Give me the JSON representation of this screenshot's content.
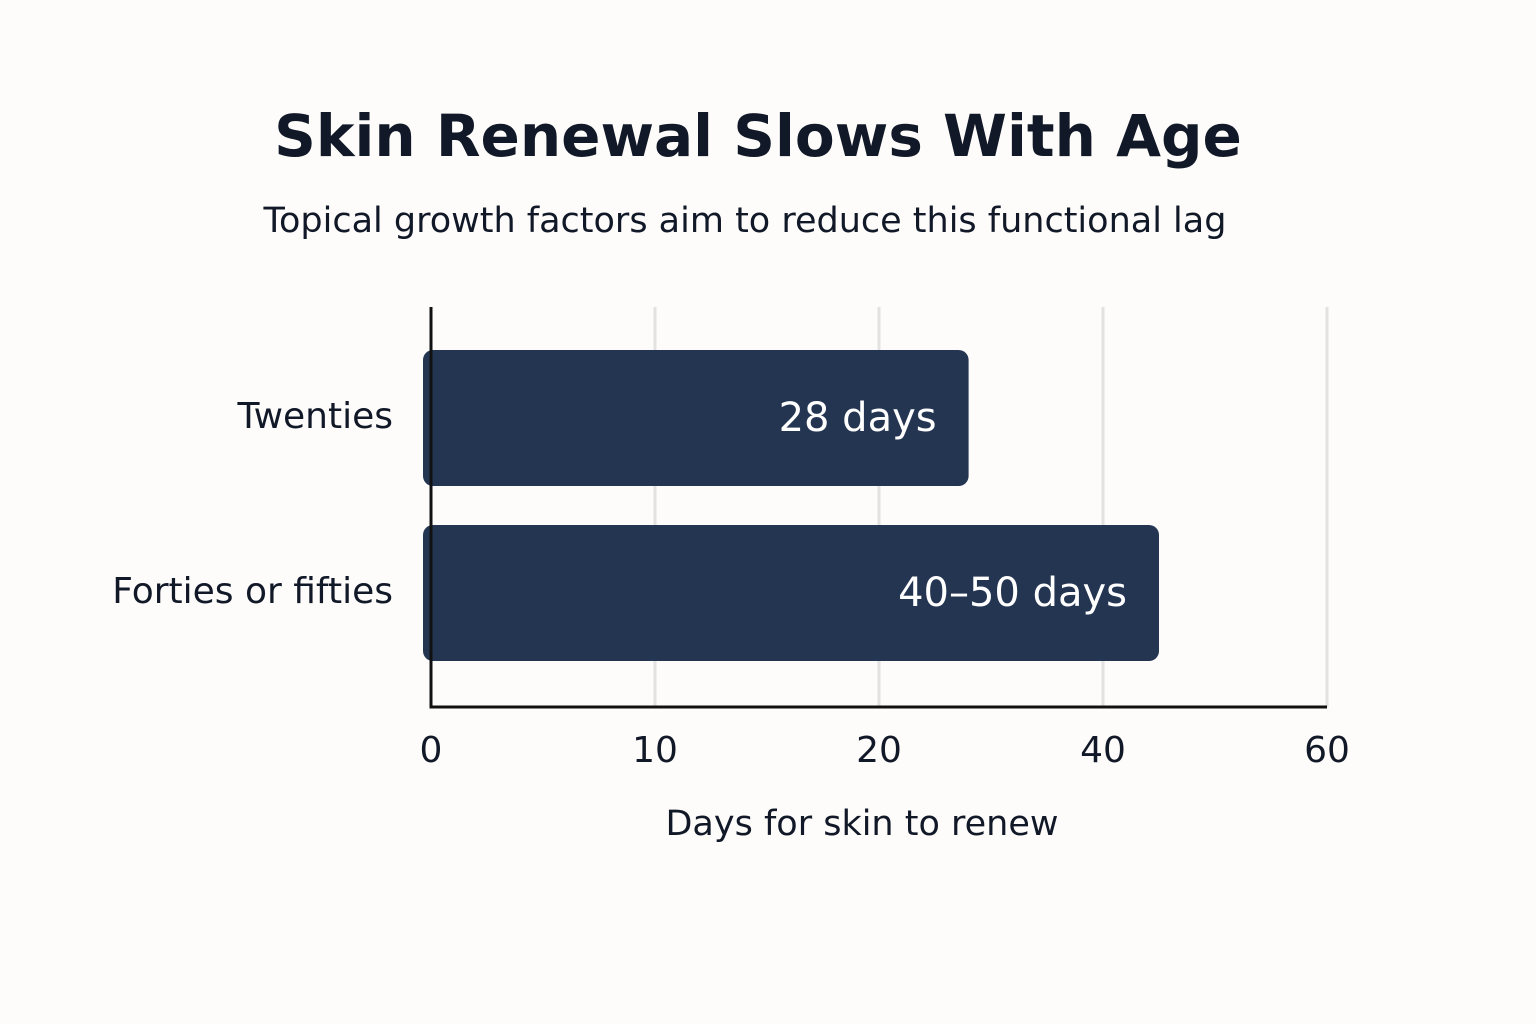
{
  "chart_data": {
    "type": "bar",
    "orientation": "horizontal",
    "title": "Skin Renewal Slows With Age",
    "subtitle": "Topical growth factors aim to reduce this functional lag",
    "x_label": "Days for skin to renew",
    "categories": [
      "Twenties",
      "Forties or fifties"
    ],
    "values": [
      28,
      45
    ],
    "value_labels": [
      "28 days",
      "40–50 days"
    ],
    "color": "#243552",
    "xlim": [
      0,
      60
    ],
    "xticks": [
      0,
      10,
      20,
      40,
      60
    ],
    "grid": true
  }
}
